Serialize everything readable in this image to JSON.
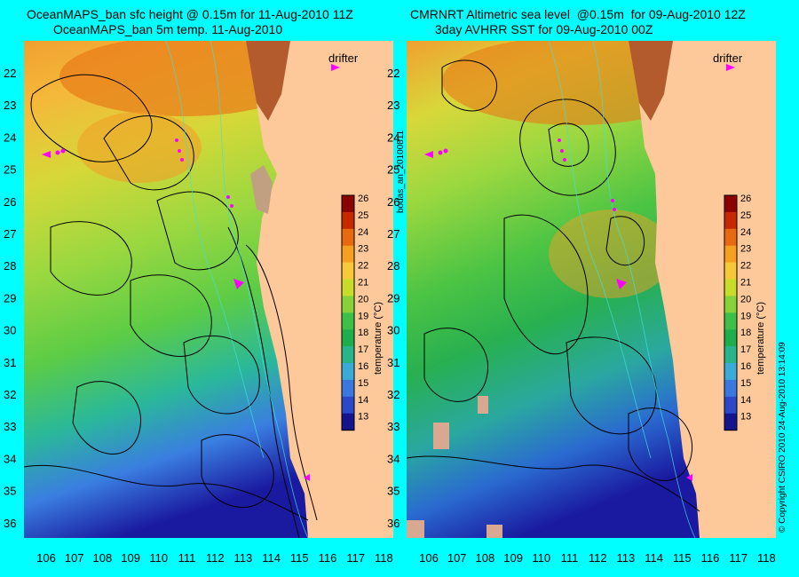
{
  "left_panel": {
    "title_line1": "OceanMAPS_ban sfc height @ 0.15m for 11-Aug-2010 11Z",
    "title_line2": "OceanMAPS_ban 5m temp. 11-Aug-2010"
  },
  "right_panel": {
    "title_line1": "CMRNRT Altimetric sea level  @0.15m  for 09-Aug-2010 12Z",
    "title_line2": "3day AVHRR SST for 09-Aug-2010 00Z"
  },
  "drifter_label": "drifter",
  "side_label": "bodas_an_20100811",
  "copyright": "© Copyright CSIRO 2010   24-Aug-2010 13:14:09",
  "axes": {
    "lon_ticks": [
      "106",
      "107",
      "108",
      "109",
      "110",
      "111",
      "112",
      "113",
      "114",
      "115",
      "116",
      "117",
      "118"
    ],
    "lat_ticks": [
      "22",
      "23",
      "24",
      "25",
      "26",
      "27",
      "28",
      "29",
      "30",
      "31",
      "32",
      "33",
      "34",
      "35",
      "36"
    ]
  },
  "colorbar": {
    "label": "temperature (°C)",
    "ticks": [
      "26",
      "25",
      "24",
      "23",
      "22",
      "21",
      "20",
      "19",
      "18",
      "17",
      "16",
      "15",
      "14",
      "13"
    ],
    "colors": [
      "#8b0000",
      "#c62800",
      "#e86a10",
      "#f5a020",
      "#f6c83a",
      "#c8dc2a",
      "#86d23a",
      "#3cc04a",
      "#1fae4e",
      "#2ab48c",
      "#3aaad8",
      "#3a78e0",
      "#2a48c8",
      "#14148c"
    ]
  },
  "colors": {
    "background": "#00ffff",
    "land": "#fdc89a",
    "contour": "#000000",
    "drifter": "#ff00ff"
  }
}
